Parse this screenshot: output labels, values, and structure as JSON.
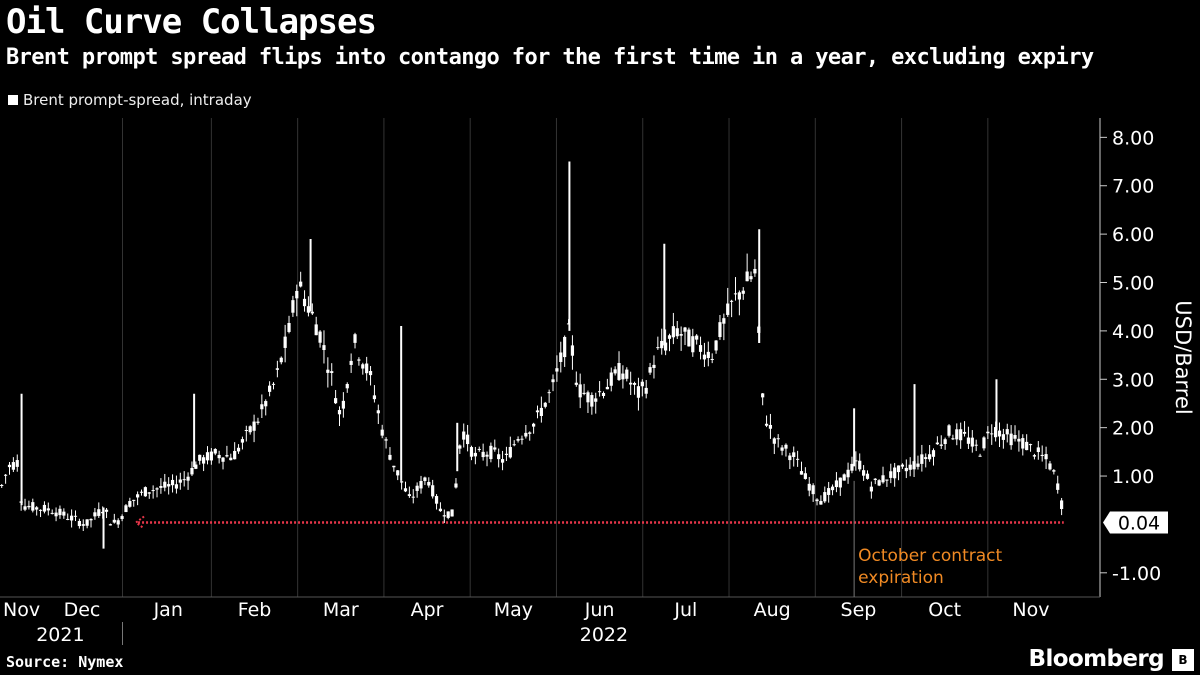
{
  "header": {
    "title": "Oil Curve Collapses",
    "subtitle": "Brent prompt spread flips into contango for the first time in a year, excluding expiry"
  },
  "footer": {
    "source": "Source: Nymex",
    "brand": "Bloomberg"
  },
  "chart_data": {
    "type": "candlestick",
    "title": "Oil Curve Collapses",
    "legend": [
      "Brent prompt-spread, intraday"
    ],
    "ylabel": "USD/Barrel",
    "ylim": [
      -1.5,
      8.4
    ],
    "yticks": [
      -1,
      1,
      2,
      3,
      4,
      5,
      6,
      7,
      8
    ],
    "ytick_labels": [
      "-1.00",
      "1.00",
      "2.00",
      "3.00",
      "4.00",
      "5.00",
      "6.00",
      "7.00",
      "8.00"
    ],
    "xlim": [
      0,
      12.75
    ],
    "month_ticks": [
      {
        "label": "Nov",
        "pos": 0.25
      },
      {
        "label": "Dec",
        "pos": 0.95
      },
      {
        "label": "Jan",
        "pos": 1.95
      },
      {
        "label": "Feb",
        "pos": 2.95
      },
      {
        "label": "Mar",
        "pos": 3.95
      },
      {
        "label": "Apr",
        "pos": 4.95
      },
      {
        "label": "May",
        "pos": 5.95
      },
      {
        "label": "Jun",
        "pos": 6.95
      },
      {
        "label": "Jul",
        "pos": 7.95
      },
      {
        "label": "Aug",
        "pos": 8.95
      },
      {
        "label": "Sep",
        "pos": 9.95
      },
      {
        "label": "Oct",
        "pos": 10.95
      },
      {
        "label": "Nov",
        "pos": 11.95
      }
    ],
    "year_labels": [
      {
        "label": "2021",
        "pos": 0.7
      },
      {
        "label": "2022",
        "pos": 7.0
      }
    ],
    "year_divider": 1.42,
    "x_gridlines": [
      1.42,
      2.45,
      3.45,
      4.45,
      5.45,
      6.45,
      7.45,
      8.45,
      9.45,
      10.45,
      11.45
    ],
    "series": [
      {
        "name": "Brent prompt-spread, intraday",
        "color": "#ffffff",
        "anchors": [
          [
            0.0,
            0.7
          ],
          [
            0.1,
            1.2
          ],
          [
            0.22,
            1.3
          ],
          [
            0.25,
            0.4
          ],
          [
            0.4,
            0.35
          ],
          [
            0.6,
            0.3
          ],
          [
            0.8,
            0.15
          ],
          [
            1.0,
            0.0
          ],
          [
            1.2,
            0.35
          ],
          [
            1.3,
            0.0
          ],
          [
            1.38,
            0.1
          ],
          [
            1.5,
            0.45
          ],
          [
            1.7,
            0.7
          ],
          [
            2.0,
            0.8
          ],
          [
            2.15,
            0.95
          ],
          [
            2.3,
            1.3
          ],
          [
            2.5,
            1.45
          ],
          [
            2.7,
            1.4
          ],
          [
            2.85,
            1.8
          ],
          [
            3.0,
            2.2
          ],
          [
            3.2,
            3.0
          ],
          [
            3.35,
            4.0
          ],
          [
            3.45,
            5.0
          ],
          [
            3.55,
            4.6
          ],
          [
            3.7,
            4.0
          ],
          [
            3.85,
            3.0
          ],
          [
            3.95,
            2.2
          ],
          [
            4.1,
            3.8
          ],
          [
            4.3,
            3.0
          ],
          [
            4.45,
            1.8
          ],
          [
            4.55,
            1.3
          ],
          [
            4.75,
            0.5
          ],
          [
            4.95,
            1.0
          ],
          [
            5.1,
            0.3
          ],
          [
            5.25,
            0.2
          ],
          [
            5.35,
            2.0
          ],
          [
            5.5,
            1.4
          ],
          [
            5.7,
            1.5
          ],
          [
            5.85,
            1.3
          ],
          [
            6.0,
            1.8
          ],
          [
            6.2,
            2.1
          ],
          [
            6.4,
            2.8
          ],
          [
            6.6,
            4.0
          ],
          [
            6.7,
            2.8
          ],
          [
            6.85,
            2.6
          ],
          [
            7.0,
            2.8
          ],
          [
            7.2,
            3.2
          ],
          [
            7.4,
            2.7
          ],
          [
            7.5,
            2.9
          ],
          [
            7.6,
            3.5
          ],
          [
            7.75,
            3.8
          ],
          [
            7.85,
            4.0
          ],
          [
            8.0,
            3.8
          ],
          [
            8.25,
            3.5
          ],
          [
            8.35,
            4.0
          ],
          [
            8.5,
            4.6
          ],
          [
            8.65,
            5.0
          ],
          [
            8.75,
            5.2
          ],
          [
            8.85,
            2.3
          ],
          [
            9.0,
            1.7
          ],
          [
            9.2,
            1.4
          ],
          [
            9.35,
            0.9
          ],
          [
            9.5,
            0.5
          ],
          [
            9.65,
            0.7
          ],
          [
            9.8,
            1.0
          ],
          [
            9.95,
            1.3
          ],
          [
            10.1,
            0.8
          ],
          [
            10.3,
            1.0
          ],
          [
            10.55,
            1.2
          ],
          [
            10.75,
            1.4
          ],
          [
            10.9,
            1.7
          ],
          [
            11.0,
            1.9
          ],
          [
            11.2,
            1.8
          ],
          [
            11.35,
            1.5
          ],
          [
            11.5,
            2.0
          ],
          [
            11.7,
            1.8
          ],
          [
            11.85,
            1.7
          ],
          [
            12.0,
            1.5
          ],
          [
            12.15,
            1.3
          ],
          [
            12.25,
            0.9
          ],
          [
            12.3,
            0.5
          ],
          [
            12.33,
            0.04
          ]
        ],
        "spikes": [
          [
            0.25,
            2.7
          ],
          [
            1.2,
            -0.5
          ],
          [
            2.25,
            2.7
          ],
          [
            3.6,
            5.9
          ],
          [
            4.65,
            4.1
          ],
          [
            5.3,
            2.1
          ],
          [
            6.6,
            7.5
          ],
          [
            7.7,
            5.8
          ],
          [
            8.8,
            6.1
          ],
          [
            9.9,
            2.4
          ],
          [
            10.6,
            2.9
          ],
          [
            11.55,
            3.0
          ]
        ]
      }
    ],
    "reference_line": {
      "value": 0.04,
      "label": "0.04",
      "x_start": 1.6,
      "x_end": 12.33,
      "color": "#e8364a"
    },
    "annotations": [
      {
        "x": 9.9,
        "lines": [
          "October contract",
          "expiration"
        ],
        "color": "#f08a24"
      }
    ]
  }
}
